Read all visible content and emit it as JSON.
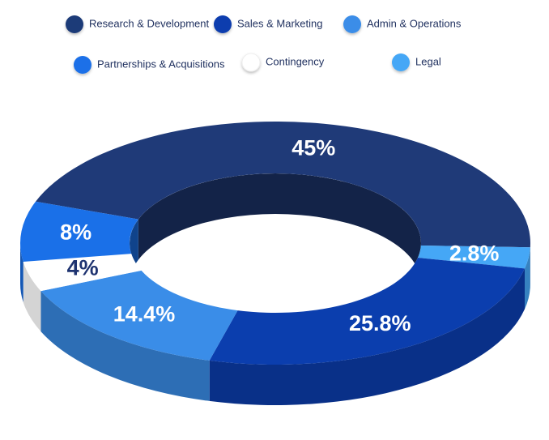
{
  "chart_data": {
    "type": "donut3d",
    "categories": [
      "Research & Development",
      "Sales & Marketing",
      "Admin & Operations",
      "Partnerships & Acquisitions",
      "Contingency",
      "Legal"
    ],
    "values": [
      45,
      25.8,
      14.4,
      8,
      4,
      2.8
    ],
    "value_labels": [
      "45%",
      "25.8%",
      "14.4%",
      "8%",
      "4%",
      "2.8%"
    ],
    "colors": [
      "#1f3a78",
      "#0b3eae",
      "#3a8de8",
      "#1a70e8",
      "#ffffff",
      "#45a7f6"
    ]
  }
}
